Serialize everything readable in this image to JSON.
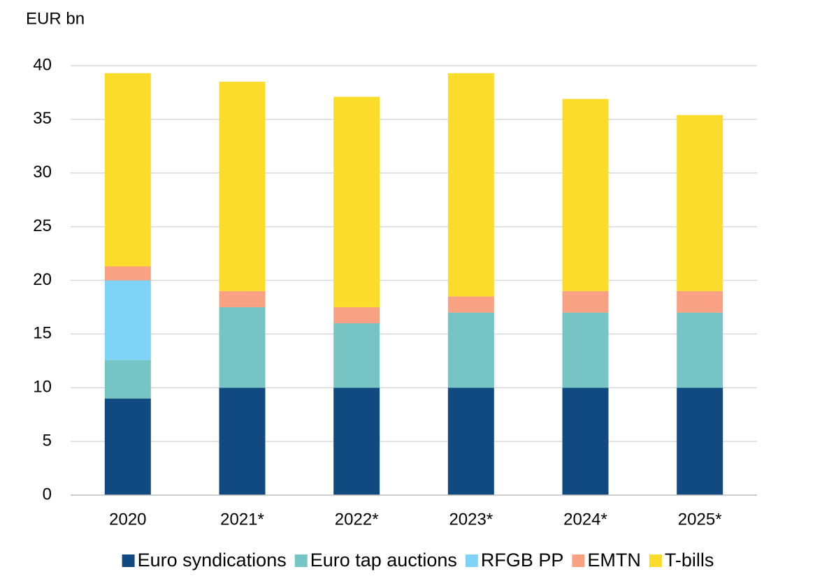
{
  "chart_data": {
    "type": "stacked_bar",
    "y_label": "EUR bn",
    "categories": [
      "2020",
      "2021*",
      "2022*",
      "2023*",
      "2024*",
      "2025*"
    ],
    "series": [
      {
        "name": "Euro syndications",
        "color": "#114a80",
        "values": [
          9,
          10,
          10,
          10,
          10,
          10
        ]
      },
      {
        "name": "Euro tap auctions",
        "color": "#76c4c4",
        "values": [
          3.6,
          7.5,
          6,
          7,
          7,
          7
        ]
      },
      {
        "name": "RFGB PP",
        "color": "#7fd3f7",
        "values": [
          7.4,
          0,
          0,
          0,
          0,
          0
        ]
      },
      {
        "name": "EMTN",
        "color": "#f9a283",
        "values": [
          1.3,
          1.5,
          1.5,
          1.5,
          2,
          2
        ]
      },
      {
        "name": "T-bills",
        "color": "#fcdc2a",
        "values": [
          18,
          19.5,
          19.6,
          20.8,
          17.9,
          16.4
        ]
      }
    ],
    "ylim": [
      0,
      40
    ],
    "yticks": [
      0,
      5,
      10,
      15,
      20,
      25,
      30,
      35,
      40
    ],
    "grid": true,
    "legend": "bottom"
  }
}
